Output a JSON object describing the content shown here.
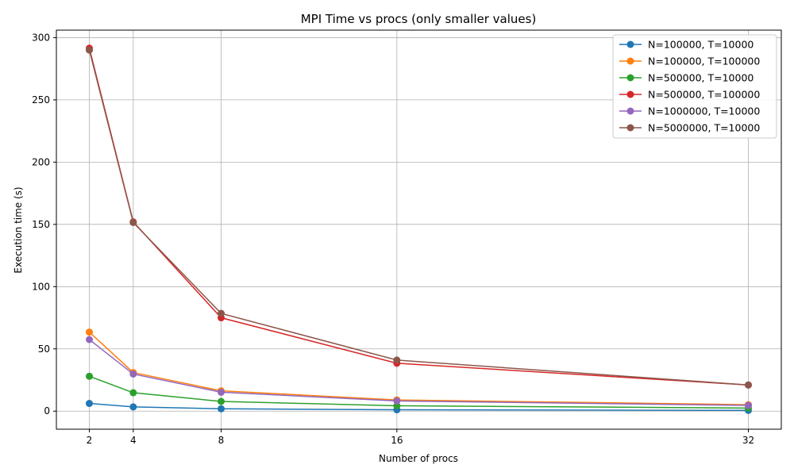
{
  "chart_data": {
    "type": "line",
    "title": "MPI Time vs procs (only smaller values)",
    "xlabel": "Number of procs",
    "ylabel": "Execution time (s)",
    "x": [
      2,
      4,
      8,
      16,
      32
    ],
    "xticks": [
      "2",
      "4",
      "8",
      "16",
      "32"
    ],
    "yticks": [
      "0",
      "50",
      "100",
      "150",
      "200",
      "250",
      "300"
    ],
    "ytick_values": [
      0,
      50,
      100,
      150,
      200,
      250,
      300
    ],
    "xlim": [
      0.5,
      33.5
    ],
    "ylim": [
      -14.5,
      306
    ],
    "grid": true,
    "legend_position": "top-right",
    "series": [
      {
        "name": "N=100000, T=10000",
        "color": "#1f77b4",
        "values": [
          6.2,
          3.4,
          1.9,
          1.1,
          0.6
        ]
      },
      {
        "name": "N=100000, T=100000",
        "color": "#ff7f0e",
        "values": [
          63.5,
          31.0,
          16.3,
          9.0,
          5.2
        ]
      },
      {
        "name": "N=500000, T=10000",
        "color": "#2ca02c",
        "values": [
          28.0,
          14.8,
          7.8,
          4.3,
          2.5
        ]
      },
      {
        "name": "N=500000, T=100000",
        "color": "#d62728",
        "values": [
          291.5,
          152.0,
          75.0,
          38.5,
          21.0
        ]
      },
      {
        "name": "N=1000000, T=10000",
        "color": "#9467bd",
        "values": [
          57.5,
          29.8,
          15.2,
          8.2,
          4.6
        ]
      },
      {
        "name": "N=5000000, T=10000",
        "color": "#8c564b",
        "values": [
          290.0,
          151.5,
          78.5,
          41.0,
          21.0
        ]
      }
    ]
  }
}
